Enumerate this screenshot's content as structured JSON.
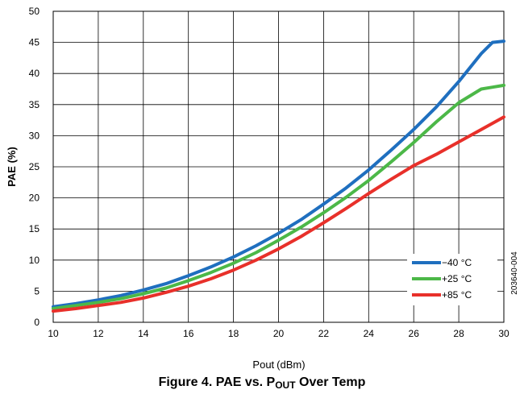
{
  "chart_data": {
    "type": "line",
    "xlabel_main": "Pout",
    "xlabel_unit": "(dBm)",
    "ylabel": "PAE (%)",
    "xlim": [
      10,
      30
    ],
    "ylim": [
      0,
      50
    ],
    "x_ticks": [
      10,
      12,
      14,
      16,
      18,
      20,
      22,
      24,
      26,
      28,
      30
    ],
    "y_ticks": [
      0,
      5,
      10,
      15,
      20,
      25,
      30,
      35,
      40,
      45,
      50
    ],
    "grid": true,
    "legend_position": "bottom-right",
    "x": [
      10,
      11,
      12,
      13,
      14,
      15,
      16,
      17,
      18,
      19,
      20,
      21,
      22,
      23,
      24,
      25,
      26,
      27,
      28,
      29,
      29.5,
      30
    ],
    "series": [
      {
        "name": "−40 °C",
        "color": "#1f6fbf",
        "values": [
          2.5,
          3.0,
          3.6,
          4.3,
          5.2,
          6.2,
          7.5,
          8.9,
          10.5,
          12.3,
          14.3,
          16.5,
          19.0,
          21.6,
          24.5,
          27.7,
          31.0,
          34.6,
          38.7,
          43.2,
          45.0,
          45.2
        ]
      },
      {
        "name": "+25 °C",
        "color": "#4cb848",
        "values": [
          2.2,
          2.7,
          3.2,
          3.8,
          4.6,
          5.5,
          6.7,
          8.0,
          9.5,
          11.2,
          13.2,
          15.3,
          17.6,
          20.1,
          22.8,
          25.8,
          28.9,
          32.2,
          35.3,
          37.5,
          37.8,
          38.1
        ]
      },
      {
        "name": "+85 °C",
        "color": "#e8302a",
        "values": [
          1.8,
          2.2,
          2.7,
          3.2,
          3.9,
          4.8,
          5.8,
          7.0,
          8.4,
          10.0,
          11.8,
          13.8,
          16.0,
          18.3,
          20.7,
          23.0,
          25.2,
          27.0,
          29.0,
          31.0,
          32.0,
          33.0
        ]
      }
    ]
  },
  "side_id": "203640-004",
  "caption": {
    "prefix": "Figure 4. PAE vs. P",
    "sub": "OUT",
    "suffix": " Over Temp"
  }
}
